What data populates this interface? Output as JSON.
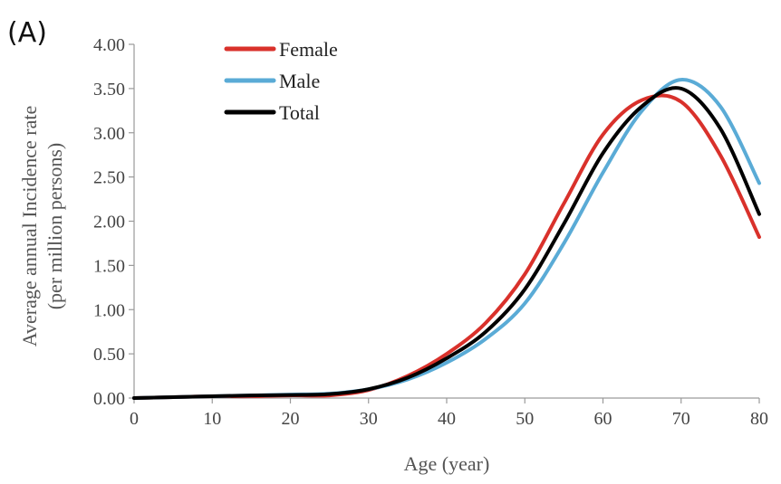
{
  "panel_label": "(A)",
  "chart_data": {
    "type": "line",
    "xlabel": "Age  (year)",
    "ylabel_lines": [
      "Average annual Incidence rate",
      "(per million persons)"
    ],
    "xlim": [
      0,
      80
    ],
    "ylim": [
      0,
      4
    ],
    "x_ticks": [
      0,
      10,
      20,
      30,
      40,
      50,
      60,
      70,
      80
    ],
    "x_tick_labels": [
      "0",
      "10",
      "20",
      "30",
      "40",
      "50",
      "60",
      "70",
      "80"
    ],
    "y_ticks": [
      0,
      0.5,
      1,
      1.5,
      2,
      2.5,
      3,
      3.5,
      4
    ],
    "y_tick_labels": [
      "0.00",
      "0.50",
      "1.00",
      "1.50",
      "2.00",
      "2.50",
      "3.00",
      "3.50",
      "4.00"
    ],
    "grid": false,
    "legend_position": "top-left",
    "x": [
      0,
      5,
      10,
      15,
      20,
      25,
      30,
      35,
      40,
      45,
      50,
      55,
      60,
      65,
      70,
      75,
      80
    ],
    "series": [
      {
        "name": "Female",
        "color": "#d9312b",
        "values": [
          0.0,
          0.01,
          0.02,
          0.02,
          0.03,
          0.03,
          0.09,
          0.25,
          0.5,
          0.85,
          1.4,
          2.2,
          2.98,
          3.37,
          3.35,
          2.75,
          1.82
        ]
      },
      {
        "name": "Male",
        "color": "#5aabd6",
        "values": [
          0.0,
          0.01,
          0.02,
          0.03,
          0.04,
          0.05,
          0.1,
          0.21,
          0.4,
          0.67,
          1.07,
          1.75,
          2.55,
          3.25,
          3.6,
          3.3,
          2.43
        ]
      },
      {
        "name": "Total",
        "color": "#000000",
        "values": [
          0.0,
          0.01,
          0.02,
          0.03,
          0.035,
          0.045,
          0.1,
          0.23,
          0.45,
          0.75,
          1.23,
          1.97,
          2.77,
          3.3,
          3.5,
          3.05,
          2.08
        ]
      }
    ]
  }
}
